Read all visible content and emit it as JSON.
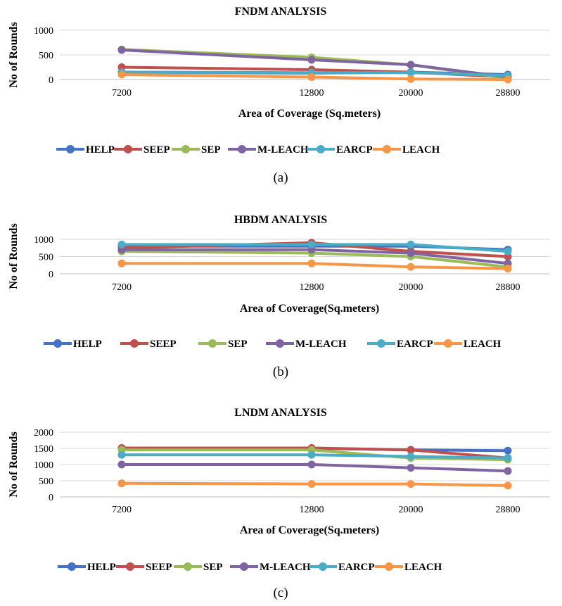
{
  "chart_data": [
    {
      "type": "line",
      "title": "FNDM ANALYSIS",
      "xlabel": "Area of Coverage (Sq.meters)",
      "ylabel": "No of Rounds",
      "categories": [
        "7200",
        "12800",
        "20000",
        "28800"
      ],
      "ylim": [
        0,
        1000
      ],
      "yticks": [
        "0",
        "500",
        "1000"
      ],
      "grid": true,
      "legend_position": "bottom",
      "caption": "(a)",
      "series": [
        {
          "name": "HELP",
          "color": "#4472c4",
          "values": [
            150,
            130,
            150,
            100
          ]
        },
        {
          "name": "SEEP",
          "color": "#c0504d",
          "values": [
            250,
            200,
            150,
            50
          ]
        },
        {
          "name": "SEP",
          "color": "#9bbb59",
          "values": [
            610,
            450,
            300,
            20
          ]
        },
        {
          "name": "M-LEACH",
          "color": "#8064a2",
          "values": [
            600,
            400,
            300,
            50
          ]
        },
        {
          "name": "EARCP",
          "color": "#4bacc6",
          "values": [
            150,
            140,
            140,
            80
          ]
        },
        {
          "name": "LEACH",
          "color": "#f79646",
          "values": [
            100,
            50,
            10,
            0
          ]
        }
      ]
    },
    {
      "type": "line",
      "title": "HBDM ANALYSIS",
      "xlabel": "Area of Coverage(Sq.meters)",
      "ylabel": "No of Rounds",
      "categories": [
        "7200",
        "12800",
        "20000",
        "28800"
      ],
      "ylim": [
        0,
        1000
      ],
      "yticks": [
        "0",
        "500",
        "1000"
      ],
      "grid": true,
      "legend_position": "bottom",
      "caption": "(b)",
      "series": [
        {
          "name": "HELP",
          "color": "#4472c4",
          "values": [
            800,
            800,
            800,
            700
          ]
        },
        {
          "name": "SEEP",
          "color": "#c0504d",
          "values": [
            750,
            900,
            650,
            500
          ]
        },
        {
          "name": "SEP",
          "color": "#9bbb59",
          "values": [
            650,
            600,
            500,
            200
          ]
        },
        {
          "name": "M-LEACH",
          "color": "#8064a2",
          "values": [
            700,
            700,
            600,
            300
          ]
        },
        {
          "name": "EARCP",
          "color": "#4bacc6",
          "values": [
            850,
            850,
            850,
            650
          ]
        },
        {
          "name": "LEACH",
          "color": "#f79646",
          "values": [
            300,
            300,
            200,
            150
          ]
        }
      ]
    },
    {
      "type": "line",
      "title": "LNDM ANALYSIS",
      "xlabel": "Area of Coverage(Sq.meters)",
      "ylabel": "No of Rounds",
      "categories": [
        "7200",
        "12800",
        "20000",
        "28800"
      ],
      "ylim": [
        0,
        2000
      ],
      "yticks": [
        "0",
        "500",
        "1000",
        "1500",
        "2000"
      ],
      "grid": true,
      "legend_position": "bottom",
      "caption": "(c)",
      "series": [
        {
          "name": "HELP",
          "color": "#4472c4",
          "values": [
            1500,
            1500,
            1450,
            1430
          ]
        },
        {
          "name": "SEEP",
          "color": "#c0504d",
          "values": [
            1510,
            1510,
            1450,
            1200
          ]
        },
        {
          "name": "SEP",
          "color": "#9bbb59",
          "values": [
            1450,
            1450,
            1200,
            1150
          ]
        },
        {
          "name": "M-LEACH",
          "color": "#8064a2",
          "values": [
            1000,
            1000,
            900,
            800
          ]
        },
        {
          "name": "EARCP",
          "color": "#4bacc6",
          "values": [
            1300,
            1300,
            1250,
            1200
          ]
        },
        {
          "name": "LEACH",
          "color": "#f79646",
          "values": [
            420,
            400,
            400,
            350
          ]
        }
      ]
    }
  ]
}
